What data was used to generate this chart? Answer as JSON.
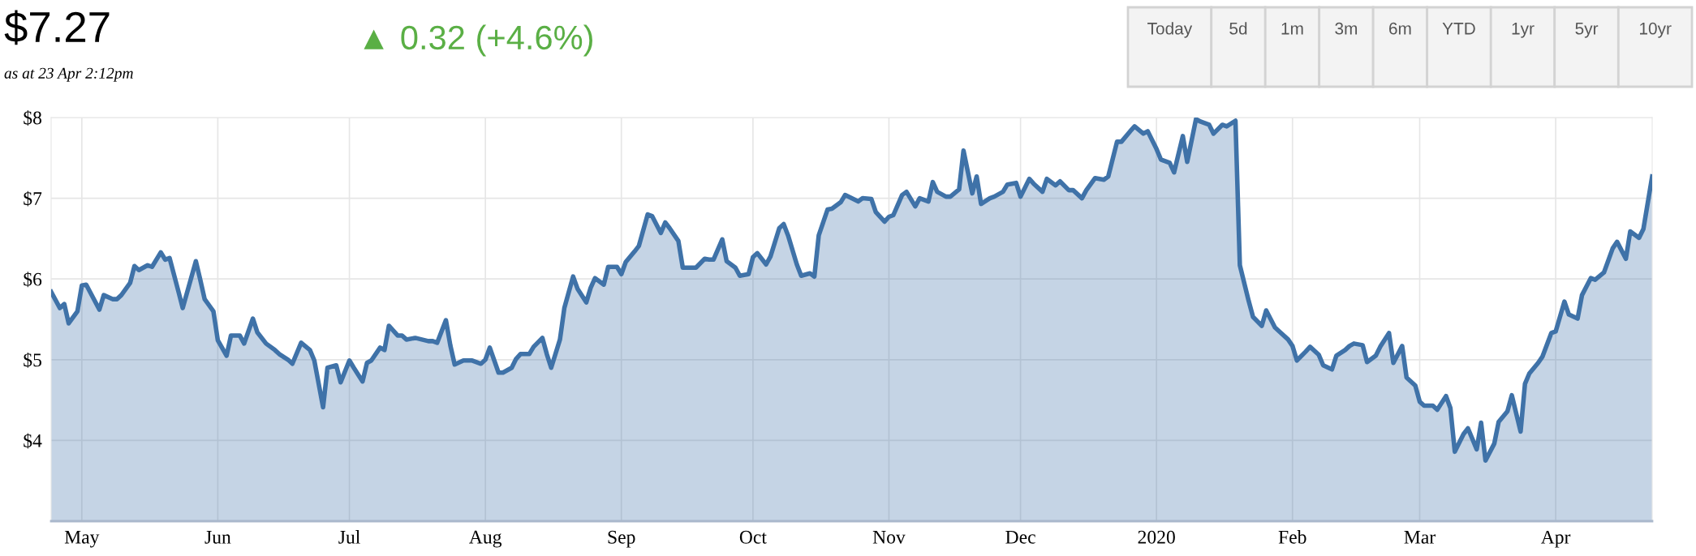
{
  "chart_data": {
    "type": "area",
    "title": "$7.27",
    "subtitle": "as at 23 Apr 2:12pm",
    "annotations": [
      "▲ 0.32 (+4.6%)",
      "Today",
      "5d",
      "1m",
      "3m",
      "6m",
      "YTD",
      "1yr",
      "5yr",
      "10yr"
    ],
    "x": [
      "2019-04-24",
      "2019-04-26",
      "2019-04-27",
      "2019-04-28",
      "2019-04-30",
      "2019-05-01",
      "2019-05-02",
      "2019-05-05",
      "2019-05-06",
      "2019-05-08",
      "2019-05-09",
      "2019-05-10",
      "2019-05-12",
      "2019-05-13",
      "2019-05-14",
      "2019-05-16",
      "2019-05-17",
      "2019-05-19",
      "2019-05-20",
      "2019-05-21",
      "2019-05-23",
      "2019-05-24",
      "2019-05-27",
      "2019-05-28",
      "2019-05-29",
      "2019-05-31",
      "2019-06-01",
      "2019-06-03",
      "2019-06-04",
      "2019-06-06",
      "2019-06-07",
      "2019-06-09",
      "2019-06-10",
      "2019-06-12",
      "2019-06-14",
      "2019-06-15",
      "2019-06-17",
      "2019-06-18",
      "2019-06-20",
      "2019-06-22",
      "2019-06-23",
      "2019-06-25",
      "2019-06-26",
      "2019-06-28",
      "2019-06-29",
      "2019-07-01",
      "2019-07-02",
      "2019-07-04",
      "2019-07-05",
      "2019-07-06",
      "2019-07-08",
      "2019-07-09",
      "2019-07-10",
      "2019-07-12",
      "2019-07-13",
      "2019-07-14",
      "2019-07-16",
      "2019-07-19",
      "2019-07-20",
      "2019-07-21",
      "2019-07-23",
      "2019-07-24",
      "2019-07-25",
      "2019-07-27",
      "2019-07-29",
      "2019-07-31",
      "2019-08-01",
      "2019-08-02",
      "2019-08-04",
      "2019-08-05",
      "2019-08-07",
      "2019-08-08",
      "2019-08-09",
      "2019-08-11",
      "2019-08-12",
      "2019-08-14",
      "2019-08-15",
      "2019-08-16",
      "2019-08-18",
      "2019-08-19",
      "2019-08-21",
      "2019-08-22",
      "2019-08-24",
      "2019-08-25",
      "2019-08-26",
      "2019-08-28",
      "2019-08-29",
      "2019-08-31",
      "2019-09-01",
      "2019-09-02",
      "2019-09-04",
      "2019-09-05",
      "2019-09-07",
      "2019-09-08",
      "2019-09-10",
      "2019-09-11",
      "2019-09-12",
      "2019-09-14",
      "2019-09-15",
      "2019-09-18",
      "2019-09-20",
      "2019-09-21",
      "2019-09-22",
      "2019-09-24",
      "2019-09-25",
      "2019-09-27",
      "2019-09-28",
      "2019-09-30",
      "2019-10-01",
      "2019-10-02",
      "2019-10-04",
      "2019-10-05",
      "2019-10-07",
      "2019-10-08",
      "2019-10-09",
      "2019-10-11",
      "2019-10-12",
      "2019-10-14",
      "2019-10-15",
      "2019-10-16",
      "2019-10-18",
      "2019-10-19",
      "2019-10-21",
      "2019-10-22",
      "2019-10-25",
      "2019-10-26",
      "2019-10-28",
      "2019-10-29",
      "2019-10-31",
      "2019-11-01",
      "2019-11-02",
      "2019-11-04",
      "2019-11-05",
      "2019-11-07",
      "2019-11-08",
      "2019-11-10",
      "2019-11-11",
      "2019-11-12",
      "2019-11-14",
      "2019-11-15",
      "2019-11-17",
      "2019-11-18",
      "2019-11-20",
      "2019-11-21",
      "2019-11-22",
      "2019-11-24",
      "2019-11-25",
      "2019-11-27",
      "2019-11-28",
      "2019-11-30",
      "2019-12-01",
      "2019-12-03",
      "2019-12-04",
      "2019-12-06",
      "2019-12-07",
      "2019-12-09",
      "2019-12-10",
      "2019-12-12",
      "2019-12-13",
      "2019-12-15",
      "2019-12-16",
      "2019-12-18",
      "2019-12-20",
      "2019-12-21",
      "2019-12-23",
      "2019-12-24",
      "2019-12-26",
      "2019-12-27",
      "2019-12-29",
      "2019-12-30",
      "2020-01-01",
      "2020-01-02",
      "2020-01-04",
      "2020-01-05",
      "2020-01-07",
      "2020-01-08",
      "2020-01-10",
      "2020-01-11",
      "2020-01-13",
      "2020-01-14",
      "2020-01-16",
      "2020-01-17",
      "2020-01-19",
      "2020-01-20",
      "2020-01-22",
      "2020-01-23",
      "2020-01-25",
      "2020-01-26",
      "2020-01-28",
      "2020-01-29",
      "2020-01-31",
      "2020-02-01",
      "2020-02-02",
      "2020-02-04",
      "2020-02-05",
      "2020-02-07",
      "2020-02-08",
      "2020-02-10",
      "2020-02-11",
      "2020-02-13",
      "2020-02-14",
      "2020-02-15",
      "2020-02-17",
      "2020-02-18",
      "2020-02-20",
      "2020-02-21",
      "2020-02-23",
      "2020-02-24",
      "2020-02-26",
      "2020-02-27",
      "2020-02-29",
      "2020-03-01",
      "2020-03-02",
      "2020-03-04",
      "2020-03-05",
      "2020-03-07",
      "2020-03-08",
      "2020-03-09",
      "2020-03-11",
      "2020-03-12",
      "2020-03-14",
      "2020-03-15",
      "2020-03-16",
      "2020-03-18",
      "2020-03-19",
      "2020-03-21",
      "2020-03-22",
      "2020-03-24",
      "2020-03-25",
      "2020-03-26",
      "2020-03-28",
      "2020-03-29",
      "2020-03-31",
      "2020-04-01",
      "2020-04-03",
      "2020-04-04",
      "2020-04-06",
      "2020-04-07",
      "2020-04-09",
      "2020-04-10",
      "2020-04-12",
      "2020-04-14",
      "2020-04-15",
      "2020-04-17",
      "2020-04-18",
      "2020-04-20",
      "2020-04-21",
      "2020-04-23"
    ],
    "series": [
      {
        "color": "#3f72a8",
        "values": [
          5.84,
          5.64,
          5.69,
          5.45,
          5.6,
          5.92,
          5.93,
          5.62,
          5.8,
          5.75,
          5.75,
          5.8,
          5.95,
          6.16,
          6.11,
          6.17,
          6.15,
          6.33,
          6.24,
          6.26,
          5.85,
          5.64,
          6.22,
          5.99,
          5.75,
          5.6,
          5.24,
          5.05,
          5.3,
          5.3,
          5.2,
          5.51,
          5.34,
          5.2,
          5.12,
          5.07,
          5.0,
          4.95,
          5.21,
          5.12,
          4.99,
          4.41,
          4.9,
          4.93,
          4.72,
          4.99,
          4.9,
          4.73,
          4.96,
          4.99,
          5.15,
          5.12,
          5.42,
          5.3,
          5.3,
          5.25,
          5.27,
          5.23,
          5.23,
          5.21,
          5.49,
          5.18,
          4.94,
          4.99,
          4.99,
          4.95,
          5.0,
          5.15,
          4.84,
          4.84,
          4.9,
          5.01,
          5.07,
          5.07,
          5.16,
          5.27,
          5.07,
          4.9,
          5.25,
          5.64,
          6.03,
          5.88,
          5.71,
          5.89,
          6.01,
          5.93,
          6.15,
          6.15,
          6.06,
          6.21,
          6.34,
          6.41,
          6.8,
          6.78,
          6.57,
          6.7,
          6.63,
          6.47,
          6.14,
          6.14,
          6.25,
          6.24,
          6.24,
          6.49,
          6.22,
          6.14,
          6.04,
          6.06,
          6.27,
          6.32,
          6.18,
          6.28,
          6.63,
          6.68,
          6.54,
          6.18,
          6.04,
          6.07,
          6.03,
          6.54,
          6.86,
          6.87,
          6.95,
          7.04,
          6.96,
          7.0,
          6.99,
          6.83,
          6.71,
          6.77,
          6.79,
          7.04,
          7.08,
          6.9,
          7.0,
          6.96,
          7.2,
          7.08,
          7.02,
          7.02,
          7.11,
          7.59,
          7.06,
          7.27,
          6.93,
          7.0,
          7.02,
          7.08,
          7.17,
          7.19,
          7.02,
          7.24,
          7.18,
          7.08,
          7.24,
          7.16,
          7.21,
          7.1,
          7.1,
          7.0,
          7.1,
          7.25,
          7.23,
          7.27,
          7.7,
          7.7,
          7.83,
          7.89,
          7.8,
          7.83,
          7.61,
          7.48,
          7.44,
          7.32,
          7.77,
          7.45,
          7.98,
          7.95,
          7.91,
          7.8,
          7.91,
          7.89,
          7.96,
          6.17,
          5.73,
          5.53,
          5.42,
          5.61,
          5.4,
          5.35,
          5.25,
          5.17,
          4.99,
          5.1,
          5.16,
          5.06,
          4.93,
          4.88,
          5.05,
          5.12,
          5.17,
          5.2,
          5.18,
          4.97,
          5.05,
          5.16,
          5.33,
          4.96,
          5.17,
          4.78,
          4.68,
          4.48,
          4.43,
          4.43,
          4.38,
          4.55,
          4.4,
          3.86,
          4.08,
          4.15,
          3.89,
          4.22,
          3.75,
          3.96,
          4.23,
          4.36,
          4.56,
          4.11,
          4.7,
          4.83,
          4.96,
          5.04,
          5.33,
          5.35,
          5.72,
          5.56,
          5.51,
          5.8,
          6.01,
          5.99,
          6.08,
          6.38,
          6.46,
          6.25,
          6.59,
          6.51,
          6.62,
          7.27
        ]
      }
    ],
    "xlim": [
      "2019-04-24",
      "2020-04-23"
    ],
    "xticks": [
      {
        "value": "2019-05-01",
        "label": "May"
      },
      {
        "value": "2019-06-01",
        "label": "Jun"
      },
      {
        "value": "2019-07-01",
        "label": "Jul"
      },
      {
        "value": "2019-08-01",
        "label": "Aug"
      },
      {
        "value": "2019-09-01",
        "label": "Sep"
      },
      {
        "value": "2019-10-01",
        "label": "Oct"
      },
      {
        "value": "2019-11-01",
        "label": "Nov"
      },
      {
        "value": "2019-12-01",
        "label": "Dec"
      },
      {
        "value": "2020-01-01",
        "label": "2020"
      },
      {
        "value": "2020-02-01",
        "label": "Feb"
      },
      {
        "value": "2020-03-01",
        "label": "Mar"
      },
      {
        "value": "2020-04-01",
        "label": "Apr"
      }
    ],
    "ylim": [
      3,
      8
    ],
    "yticks": [
      {
        "value": 4,
        "label": "$4"
      },
      {
        "value": 5,
        "label": "$5"
      },
      {
        "value": 6,
        "label": "$6"
      },
      {
        "value": 7,
        "label": "$7"
      },
      {
        "value": 8,
        "label": "$8"
      }
    ],
    "grid": true,
    "legend": false,
    "marker": "none",
    "line_style": "solid"
  }
}
